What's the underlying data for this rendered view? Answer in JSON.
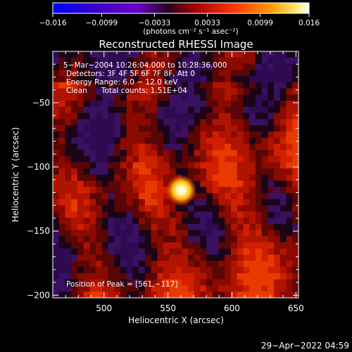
{
  "chart_data": {
    "type": "heatmap",
    "title": "Reconstructed RHESSI Image",
    "xlabel": "Heliocentric X (arcsec)",
    "ylabel": "Heliocentric Y (arcsec)",
    "xlim": [
      460,
      652
    ],
    "ylim": [
      -202,
      -10
    ],
    "x_ticks": [
      500,
      550,
      600,
      650
    ],
    "y_ticks": [
      -50,
      -100,
      -150,
      -200
    ],
    "x_tick_labels": [
      "500",
      "550",
      "600",
      "650"
    ],
    "y_tick_labels": [
      "−50",
      "−100",
      "−150",
      "−200"
    ],
    "colorbar": {
      "min": -0.016,
      "max": 0.016,
      "ticks": [
        -0.016,
        -0.0099,
        -0.0033,
        0.0033,
        0.0099,
        0.016
      ],
      "tick_labels": [
        "−0.016",
        "−0.0099",
        "−0.0033",
        "0.0033",
        "0.0099",
        "0.016"
      ],
      "unit_label": "(photons cm⁻² s⁻¹ asec⁻²)"
    },
    "info_lines": [
      "5−Mar−2004 10:26:04.000 to 10:28:36.000",
      "Detectors: 3F 4F 5F 6F 7F 8F, Att 0",
      "Energy Range: 6.0 − 12.0 keV",
      "Clean      Total counts: 1.51E+04"
    ],
    "peak_label": "Position of Peak = [561,−117]",
    "peak": {
      "x": 561,
      "y": -117
    },
    "timestamp": "29−Apr−2022 04:59",
    "colors": {
      "background": "#000000",
      "colormap": [
        "#0000ff",
        "#6a00c8",
        "#3c0050",
        "#b01000",
        "#ff2a00",
        "#ff8a00",
        "#ffe070",
        "#ffffff"
      ]
    }
  }
}
